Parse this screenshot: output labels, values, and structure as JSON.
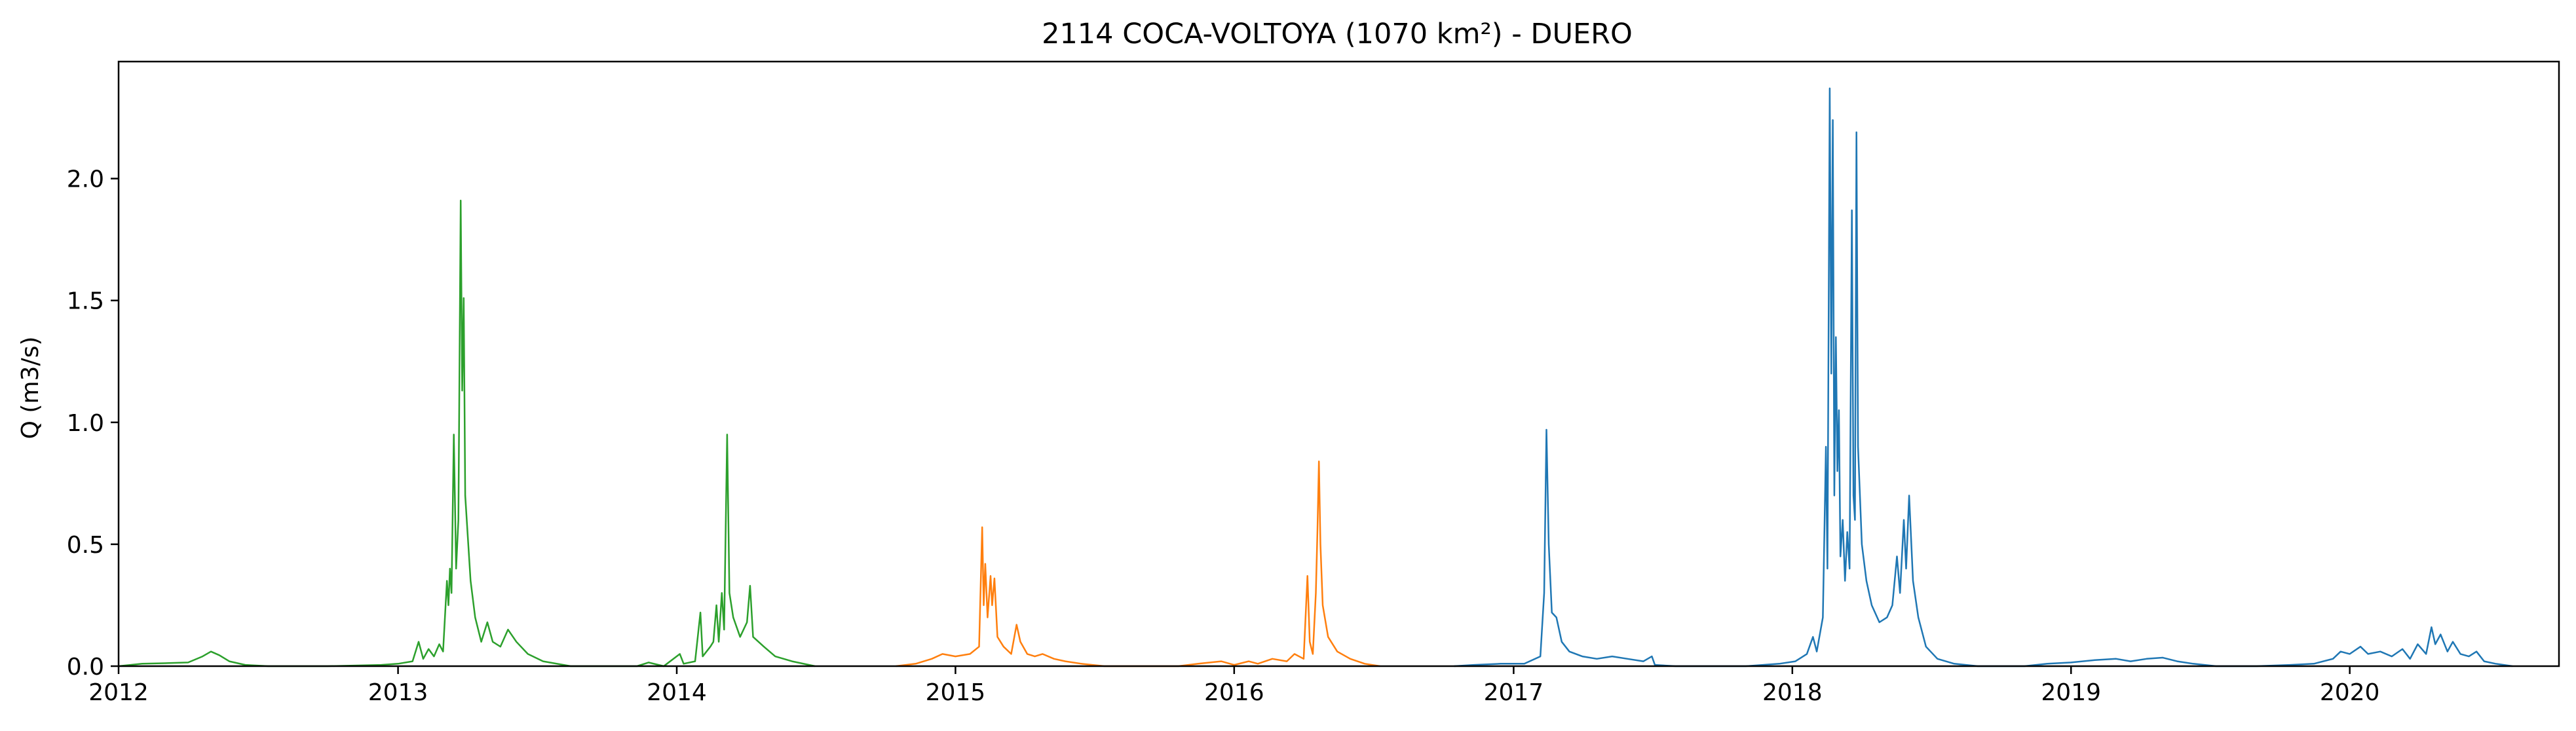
{
  "chart_data": {
    "type": "line",
    "title": "2114 COCA-VOLTOYA (1070 km²) - DUERO",
    "xlabel": "",
    "ylabel": "Q (m3/s)",
    "x_ticks": [
      "2012",
      "2013",
      "2014",
      "2015",
      "2016",
      "2017",
      "2018",
      "2019",
      "2020"
    ],
    "y_ticks": [
      "0.0",
      "0.5",
      "1.0",
      "1.5",
      "2.0"
    ],
    "xlim": [
      "2012-01-01",
      "2020-10-01"
    ],
    "ylim": [
      0,
      2.48
    ],
    "grid": false,
    "legend": "none",
    "series": [
      {
        "color": "#2ca02c",
        "points": [
          [
            "2012-01-01",
            0.0
          ],
          [
            "2012-02-01",
            0.01
          ],
          [
            "2012-03-01",
            0.012
          ],
          [
            "2012-04-01",
            0.015
          ],
          [
            "2012-04-20",
            0.04
          ],
          [
            "2012-05-01",
            0.06
          ],
          [
            "2012-05-12",
            0.045
          ],
          [
            "2012-05-25",
            0.02
          ],
          [
            "2012-06-15",
            0.005
          ],
          [
            "2012-07-15",
            0.0
          ],
          [
            "2012-10-01",
            0.0
          ],
          [
            "2012-12-10",
            0.005
          ],
          [
            "2013-01-01",
            0.01
          ],
          [
            "2013-01-20",
            0.02
          ],
          [
            "2013-01-28",
            0.1
          ],
          [
            "2013-02-03",
            0.03
          ],
          [
            "2013-02-10",
            0.07
          ],
          [
            "2013-02-17",
            0.04
          ],
          [
            "2013-02-24",
            0.09
          ],
          [
            "2013-03-01",
            0.06
          ],
          [
            "2013-03-06",
            0.35
          ],
          [
            "2013-03-08",
            0.25
          ],
          [
            "2013-03-10",
            0.4
          ],
          [
            "2013-03-12",
            0.3
          ],
          [
            "2013-03-15",
            0.95
          ],
          [
            "2013-03-18",
            0.4
          ],
          [
            "2013-03-21",
            0.6
          ],
          [
            "2013-03-24",
            1.91
          ],
          [
            "2013-03-26",
            1.13
          ],
          [
            "2013-03-28",
            1.51
          ],
          [
            "2013-03-30",
            0.7
          ],
          [
            "2013-04-02",
            0.55
          ],
          [
            "2013-04-06",
            0.35
          ],
          [
            "2013-04-12",
            0.2
          ],
          [
            "2013-04-20",
            0.1
          ],
          [
            "2013-04-28",
            0.18
          ],
          [
            "2013-05-05",
            0.1
          ],
          [
            "2013-05-15",
            0.08
          ],
          [
            "2013-05-25",
            0.15
          ],
          [
            "2013-06-05",
            0.1
          ],
          [
            "2013-06-20",
            0.05
          ],
          [
            "2013-07-10",
            0.02
          ],
          [
            "2013-08-15",
            0.0
          ],
          [
            "2013-11-10",
            0.0
          ],
          [
            "2013-11-25",
            0.015
          ],
          [
            "2013-12-15",
            0.0
          ],
          [
            "2014-01-05",
            0.05
          ],
          [
            "2014-01-10",
            0.01
          ],
          [
            "2014-01-25",
            0.02
          ],
          [
            "2014-02-01",
            0.22
          ],
          [
            "2014-02-04",
            0.04
          ],
          [
            "2014-02-14",
            0.08
          ],
          [
            "2014-02-18",
            0.1
          ],
          [
            "2014-02-22",
            0.25
          ],
          [
            "2014-02-25",
            0.1
          ],
          [
            "2014-03-01",
            0.3
          ],
          [
            "2014-03-04",
            0.15
          ],
          [
            "2014-03-08",
            0.95
          ],
          [
            "2014-03-11",
            0.3
          ],
          [
            "2014-03-16",
            0.2
          ],
          [
            "2014-03-25",
            0.12
          ],
          [
            "2014-04-03",
            0.18
          ],
          [
            "2014-04-07",
            0.33
          ],
          [
            "2014-04-11",
            0.12
          ],
          [
            "2014-04-25",
            0.08
          ],
          [
            "2014-05-10",
            0.04
          ],
          [
            "2014-06-01",
            0.02
          ],
          [
            "2014-07-01",
            0.0
          ]
        ]
      },
      {
        "color": "#ff7f0e",
        "points": [
          [
            "2014-10-15",
            0.0
          ],
          [
            "2014-11-10",
            0.01
          ],
          [
            "2014-12-01",
            0.03
          ],
          [
            "2014-12-15",
            0.05
          ],
          [
            "2015-01-01",
            0.04
          ],
          [
            "2015-01-20",
            0.05
          ],
          [
            "2015-02-01",
            0.08
          ],
          [
            "2015-02-05",
            0.57
          ],
          [
            "2015-02-07",
            0.25
          ],
          [
            "2015-02-09",
            0.42
          ],
          [
            "2015-02-12",
            0.2
          ],
          [
            "2015-02-16",
            0.37
          ],
          [
            "2015-02-18",
            0.25
          ],
          [
            "2015-02-21",
            0.36
          ],
          [
            "2015-02-25",
            0.12
          ],
          [
            "2015-03-05",
            0.08
          ],
          [
            "2015-03-15",
            0.05
          ],
          [
            "2015-03-22",
            0.17
          ],
          [
            "2015-03-27",
            0.1
          ],
          [
            "2015-04-05",
            0.05
          ],
          [
            "2015-04-15",
            0.04
          ],
          [
            "2015-04-25",
            0.05
          ],
          [
            "2015-05-10",
            0.03
          ],
          [
            "2015-05-25",
            0.02
          ],
          [
            "2015-06-15",
            0.01
          ],
          [
            "2015-07-15",
            0.0
          ],
          [
            "2015-10-20",
            0.0
          ],
          [
            "2015-11-15",
            0.01
          ],
          [
            "2015-12-15",
            0.02
          ],
          [
            "2016-01-01",
            0.005
          ],
          [
            "2016-01-20",
            0.02
          ],
          [
            "2016-02-01",
            0.01
          ],
          [
            "2016-02-20",
            0.03
          ],
          [
            "2016-03-10",
            0.02
          ],
          [
            "2016-03-20",
            0.05
          ],
          [
            "2016-04-01",
            0.03
          ],
          [
            "2016-04-06",
            0.37
          ],
          [
            "2016-04-09",
            0.1
          ],
          [
            "2016-04-13",
            0.05
          ],
          [
            "2016-04-17",
            0.3
          ],
          [
            "2016-04-19",
            0.55
          ],
          [
            "2016-04-21",
            0.84
          ],
          [
            "2016-04-23",
            0.5
          ],
          [
            "2016-04-26",
            0.25
          ],
          [
            "2016-05-03",
            0.12
          ],
          [
            "2016-05-15",
            0.06
          ],
          [
            "2016-06-01",
            0.03
          ],
          [
            "2016-06-20",
            0.01
          ],
          [
            "2016-07-10",
            0.0
          ]
        ]
      },
      {
        "color": "#1f77b4",
        "points": [
          [
            "2016-10-15",
            0.0
          ],
          [
            "2016-11-10",
            0.005
          ],
          [
            "2016-12-15",
            0.01
          ],
          [
            "2017-01-15",
            0.01
          ],
          [
            "2017-02-05",
            0.04
          ],
          [
            "2017-02-10",
            0.3
          ],
          [
            "2017-02-13",
            0.97
          ],
          [
            "2017-02-16",
            0.5
          ],
          [
            "2017-02-20",
            0.22
          ],
          [
            "2017-02-26",
            0.2
          ],
          [
            "2017-03-05",
            0.1
          ],
          [
            "2017-03-15",
            0.06
          ],
          [
            "2017-04-01",
            0.04
          ],
          [
            "2017-04-20",
            0.03
          ],
          [
            "2017-05-10",
            0.04
          ],
          [
            "2017-05-30",
            0.03
          ],
          [
            "2017-06-20",
            0.02
          ],
          [
            "2017-07-01",
            0.04
          ],
          [
            "2017-07-05",
            0.005
          ],
          [
            "2017-08-01",
            0.0
          ],
          [
            "2017-11-01",
            0.0
          ],
          [
            "2017-12-15",
            0.01
          ],
          [
            "2018-01-05",
            0.02
          ],
          [
            "2018-01-20",
            0.05
          ],
          [
            "2018-01-28",
            0.12
          ],
          [
            "2018-02-02",
            0.06
          ],
          [
            "2018-02-10",
            0.2
          ],
          [
            "2018-02-14",
            0.9
          ],
          [
            "2018-02-16",
            0.4
          ],
          [
            "2018-02-19",
            2.37
          ],
          [
            "2018-02-21",
            1.2
          ],
          [
            "2018-02-23",
            2.24
          ],
          [
            "2018-02-25",
            0.7
          ],
          [
            "2018-02-27",
            1.35
          ],
          [
            "2018-03-01",
            0.8
          ],
          [
            "2018-03-03",
            1.05
          ],
          [
            "2018-03-05",
            0.45
          ],
          [
            "2018-03-08",
            0.6
          ],
          [
            "2018-03-11",
            0.35
          ],
          [
            "2018-03-14",
            0.55
          ],
          [
            "2018-03-17",
            0.4
          ],
          [
            "2018-03-20",
            1.87
          ],
          [
            "2018-03-22",
            0.7
          ],
          [
            "2018-03-24",
            0.6
          ],
          [
            "2018-03-26",
            2.19
          ],
          [
            "2018-03-28",
            0.9
          ],
          [
            "2018-04-02",
            0.5
          ],
          [
            "2018-04-08",
            0.35
          ],
          [
            "2018-04-15",
            0.25
          ],
          [
            "2018-04-25",
            0.18
          ],
          [
            "2018-05-05",
            0.2
          ],
          [
            "2018-05-12",
            0.25
          ],
          [
            "2018-05-18",
            0.45
          ],
          [
            "2018-05-22",
            0.3
          ],
          [
            "2018-05-27",
            0.6
          ],
          [
            "2018-05-30",
            0.4
          ],
          [
            "2018-06-03",
            0.7
          ],
          [
            "2018-06-08",
            0.35
          ],
          [
            "2018-06-15",
            0.2
          ],
          [
            "2018-06-25",
            0.08
          ],
          [
            "2018-07-10",
            0.03
          ],
          [
            "2018-08-01",
            0.01
          ],
          [
            "2018-09-01",
            0.0
          ],
          [
            "2018-11-01",
            0.0
          ],
          [
            "2018-12-01",
            0.01
          ],
          [
            "2019-01-01",
            0.015
          ],
          [
            "2019-02-01",
            0.025
          ],
          [
            "2019-03-01",
            0.03
          ],
          [
            "2019-03-20",
            0.02
          ],
          [
            "2019-04-10",
            0.03
          ],
          [
            "2019-05-01",
            0.035
          ],
          [
            "2019-05-20",
            0.02
          ],
          [
            "2019-06-10",
            0.01
          ],
          [
            "2019-07-10",
            0.0
          ],
          [
            "2019-09-01",
            0.0
          ],
          [
            "2019-10-15",
            0.005
          ],
          [
            "2019-11-15",
            0.01
          ],
          [
            "2019-12-10",
            0.03
          ],
          [
            "2019-12-20",
            0.06
          ],
          [
            "2020-01-01",
            0.05
          ],
          [
            "2020-01-15",
            0.08
          ],
          [
            "2020-01-25",
            0.05
          ],
          [
            "2020-02-10",
            0.06
          ],
          [
            "2020-02-25",
            0.04
          ],
          [
            "2020-03-10",
            0.07
          ],
          [
            "2020-03-20",
            0.03
          ],
          [
            "2020-03-30",
            0.09
          ],
          [
            "2020-04-10",
            0.05
          ],
          [
            "2020-04-17",
            0.16
          ],
          [
            "2020-04-22",
            0.09
          ],
          [
            "2020-04-29",
            0.13
          ],
          [
            "2020-05-08",
            0.06
          ],
          [
            "2020-05-15",
            0.1
          ],
          [
            "2020-05-25",
            0.05
          ],
          [
            "2020-06-05",
            0.04
          ],
          [
            "2020-06-15",
            0.06
          ],
          [
            "2020-06-25",
            0.02
          ],
          [
            "2020-07-10",
            0.01
          ],
          [
            "2020-08-01",
            0.0
          ]
        ]
      }
    ]
  }
}
